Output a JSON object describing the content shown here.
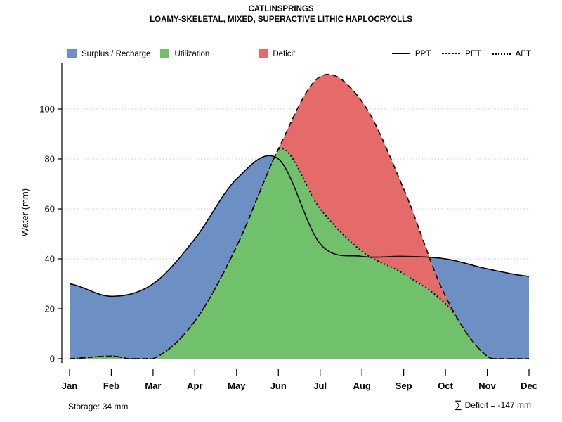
{
  "chart_data": {
    "type": "area",
    "title": "CATLINSPRINGS",
    "subtitle": "LOAMY-SKELETAL, MIXED, SUPERACTIVE LITHIC HAPLOCRYOLLS",
    "xlabel": "",
    "ylabel": "Water (mm)",
    "categories": [
      "Jan",
      "Feb",
      "Mar",
      "Apr",
      "May",
      "Jun",
      "Jul",
      "Aug",
      "Sep",
      "Oct",
      "Nov",
      "Dec"
    ],
    "ylim": [
      0,
      118
    ],
    "yticks": [
      0,
      20,
      40,
      60,
      80,
      100
    ],
    "grid": "horizontal dotted gridlines",
    "legend_position": "top",
    "series": [
      {
        "name": "PPT",
        "line": "solid",
        "values": [
          30,
          25,
          30,
          48,
          72,
          80,
          46,
          41,
          41,
          40,
          36,
          33
        ]
      },
      {
        "name": "PET",
        "line": "dashed",
        "values": [
          0,
          1,
          0,
          15,
          45,
          84,
          113,
          103,
          68,
          25,
          1,
          0
        ]
      },
      {
        "name": "AET",
        "line": "dotted",
        "values": [
          0,
          1,
          0,
          15,
          45,
          84,
          60,
          43,
          34,
          22,
          1,
          0
        ]
      }
    ],
    "areas": [
      {
        "name": "Surplus / Recharge",
        "between": [
          "PET",
          "PPT"
        ],
        "color": "#6C90C4"
      },
      {
        "name": "Utilization",
        "between": [
          "0",
          "AET"
        ],
        "color": "#71C16C"
      },
      {
        "name": "Deficit",
        "between": [
          "AET",
          "PET"
        ],
        "color": "#E56B6B"
      }
    ],
    "annotations": {
      "storage_label": "Storage: 34 mm",
      "storage_mm": 34,
      "deficit_sigma": "∑",
      "deficit_label": "Deficit = -147 mm",
      "deficit_total_mm": -147
    }
  }
}
